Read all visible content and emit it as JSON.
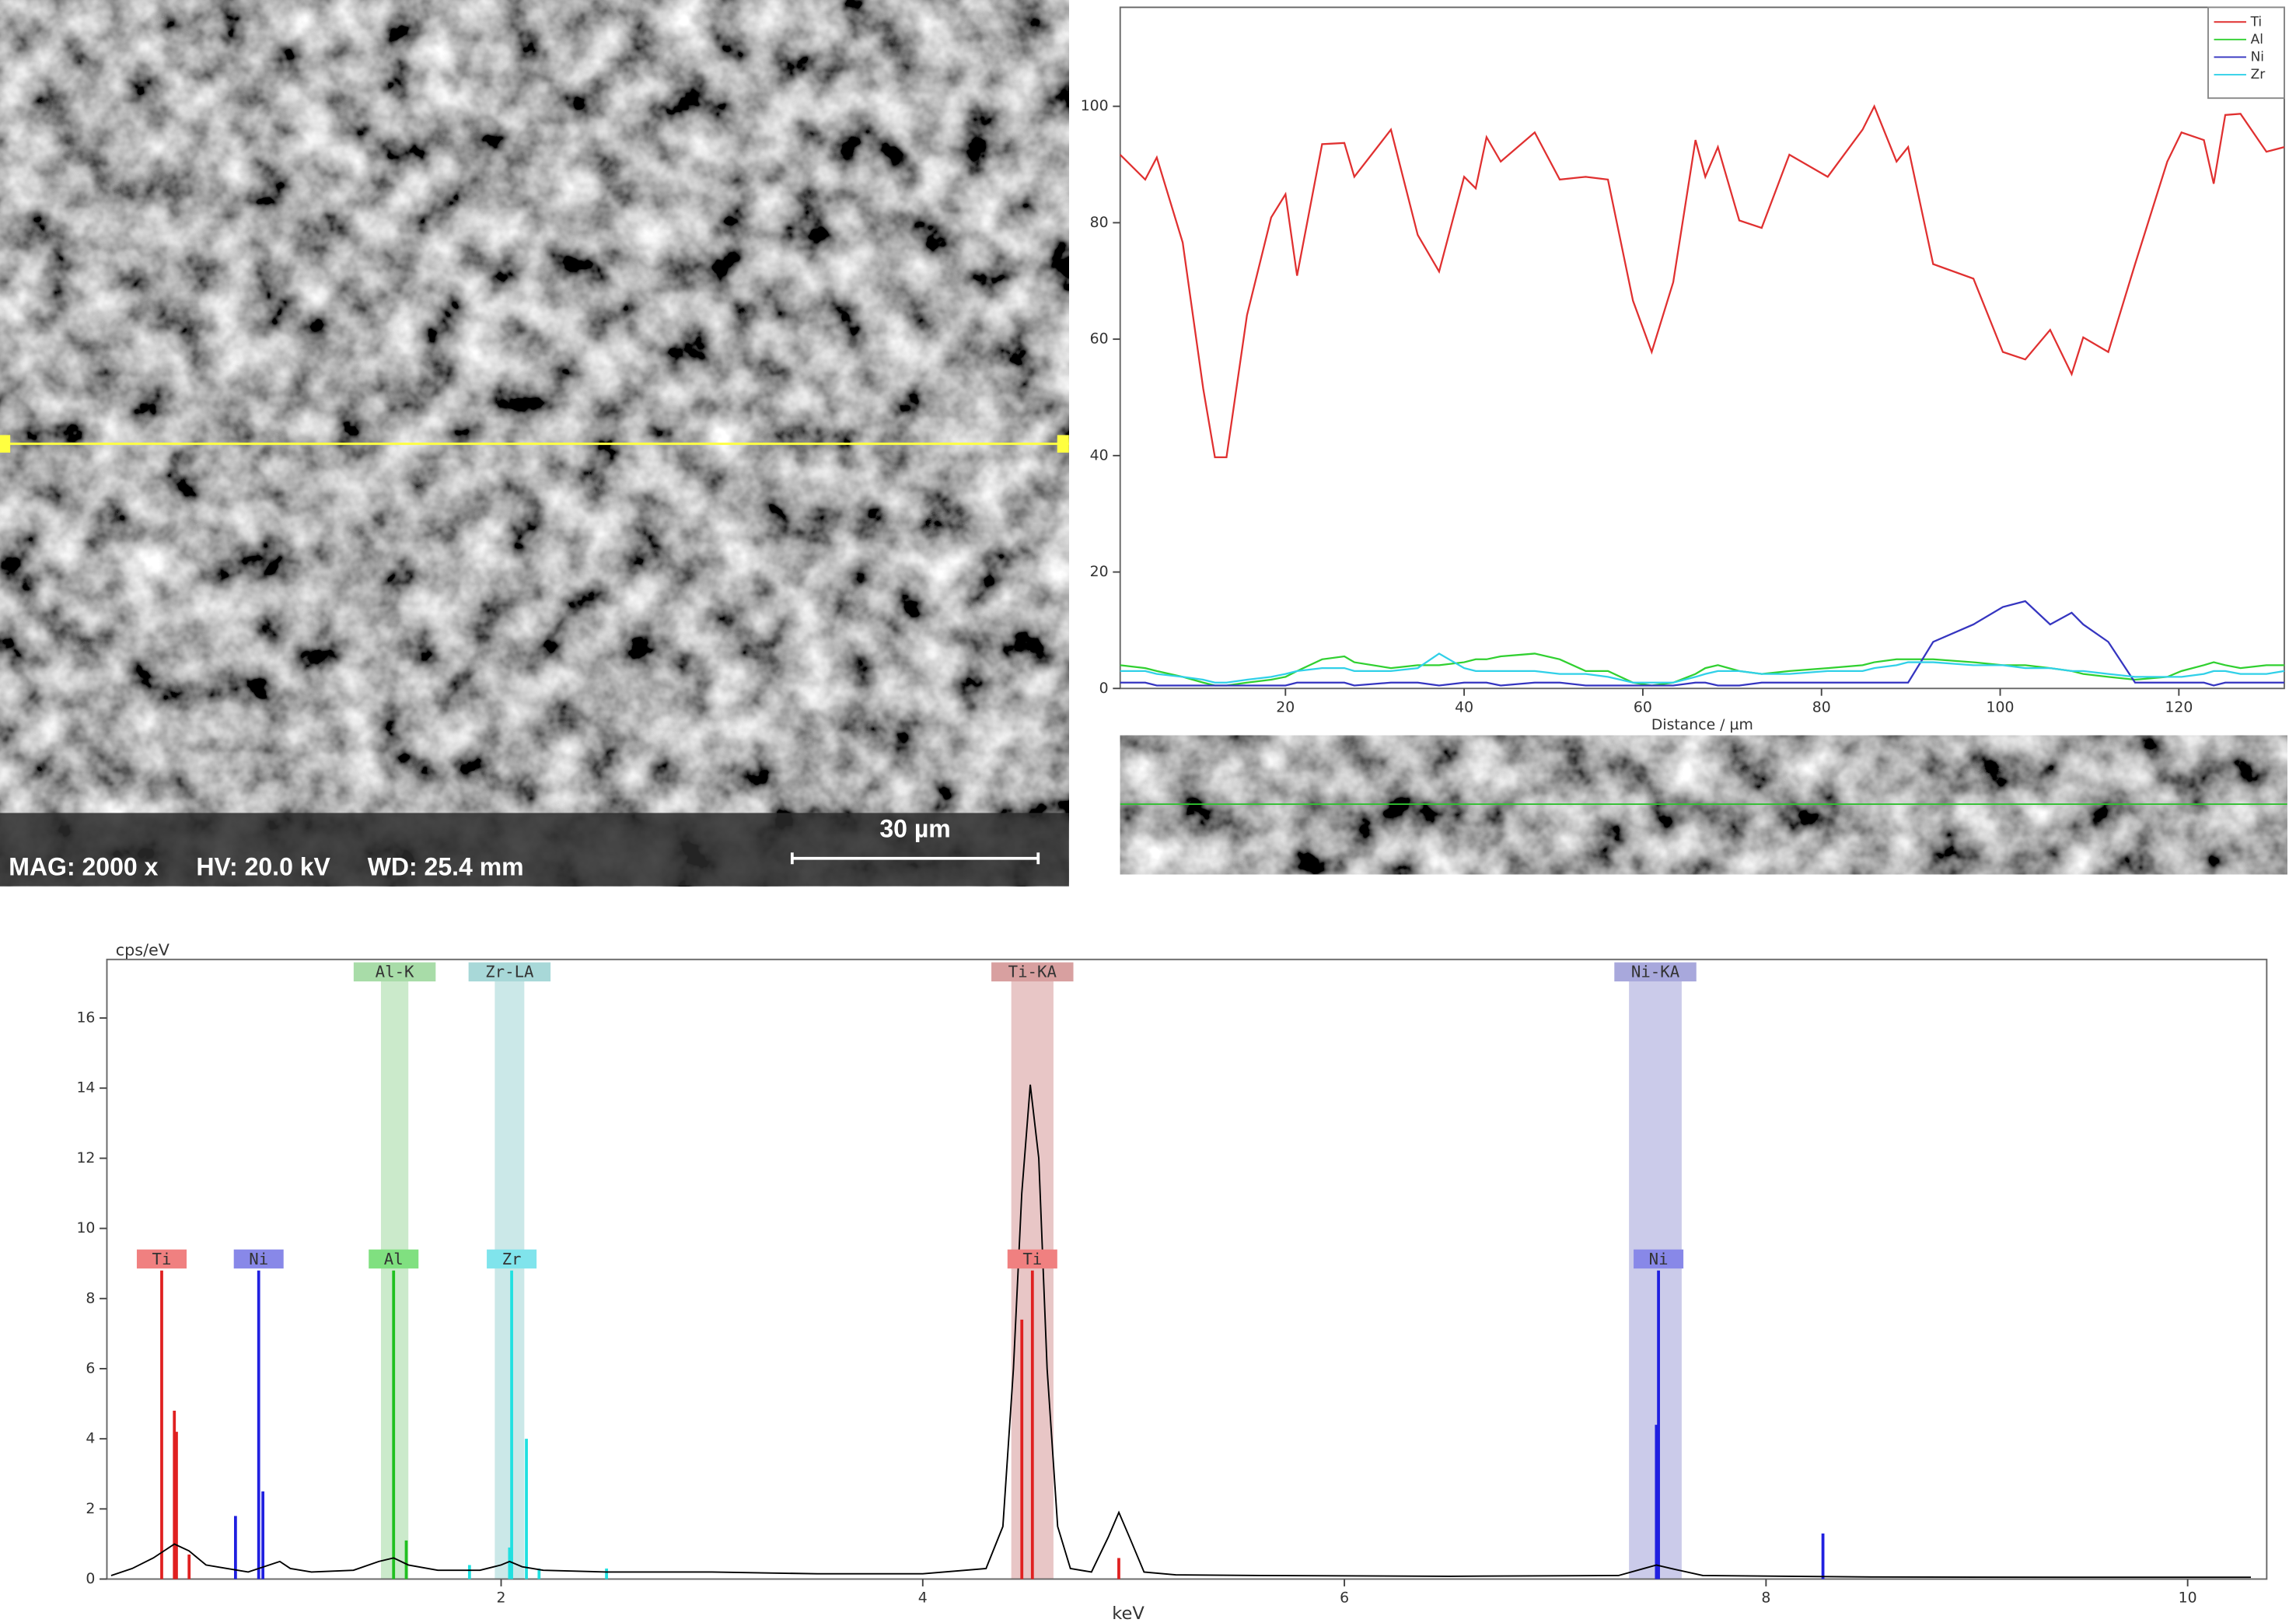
{
  "sem_image": {
    "magnification": "MAG: 2000 x",
    "voltage": "HV: 20.0 kV",
    "working_distance": "WD: 25.4 mm",
    "scale_bar": "30 µm"
  },
  "chart_data": [
    {
      "type": "line",
      "x_label": "Distance / µm",
      "legend": "upper right",
      "x": [
        1.5,
        4.3,
        5.6,
        8.5,
        10.8,
        12.1,
        13.4,
        15.7,
        18.4,
        20.0,
        21.3,
        24.1,
        26.6,
        27.7,
        31.8,
        34.8,
        37.2,
        40.0,
        41.3,
        42.5,
        44.1,
        47.9,
        50.7,
        53.6,
        56.1,
        58.9,
        61.0,
        63.4,
        65.9,
        67.0,
        68.4,
        70.8,
        73.3,
        76.4,
        80.7,
        84.6,
        85.9,
        88.4,
        89.7,
        92.5,
        97.0,
        100.3,
        102.8,
        105.6,
        108.0,
        109.3,
        112.1,
        115.1,
        118.7,
        120.3,
        122.8,
        123.9,
        125.2,
        126.9,
        129.8,
        131.8
      ],
      "series": [
        {
          "name": "Ti",
          "color": "#e03030",
          "values": [
            91.7,
            87.4,
            91.2,
            76.6,
            51.5,
            39.7,
            39.7,
            64.1,
            80.9,
            84.9,
            70.9,
            93.5,
            93.7,
            87.9,
            96.0,
            77.9,
            71.6,
            87.9,
            85.9,
            94.7,
            90.5,
            95.5,
            87.4,
            87.9,
            87.4,
            66.6,
            57.8,
            69.8,
            94.2,
            87.9,
            93.0,
            80.4,
            79.1,
            91.7,
            87.9,
            96.0,
            100,
            90.5,
            93.0,
            72.9,
            70.4,
            57.8,
            56.5,
            61.6,
            54.0,
            60.3,
            57.8,
            72.9,
            90.5,
            95.5,
            94.2,
            86.7,
            98.5,
            98.7,
            92.2,
            93.0
          ]
        },
        {
          "name": "Al",
          "color": "#30d030",
          "values": [
            4,
            3.5,
            3,
            2,
            1,
            0.5,
            0.5,
            1,
            1.5,
            2,
            3,
            5,
            5.5,
            4.5,
            3.5,
            4,
            4,
            4.5,
            5,
            5,
            5.5,
            6,
            5,
            3,
            3,
            1,
            0.5,
            1,
            2.5,
            3.5,
            4,
            3,
            2.5,
            3,
            3.5,
            4,
            4.5,
            5,
            5,
            5,
            4.5,
            4,
            4,
            3.5,
            3,
            2.5,
            2,
            1.5,
            2,
            3,
            4,
            4.5,
            4,
            3.5,
            4,
            4
          ]
        },
        {
          "name": "Ni",
          "color": "#3535c0",
          "values": [
            1,
            1,
            0.5,
            0.5,
            0.5,
            0.5,
            0.5,
            0.5,
            0.5,
            0.5,
            1,
            1,
            1,
            0.5,
            1,
            1,
            0.5,
            1,
            1,
            1,
            0.5,
            1,
            1,
            0.5,
            0.5,
            0.5,
            0.5,
            0.5,
            1,
            1,
            0.5,
            0.5,
            1,
            1,
            1,
            1,
            1,
            1,
            1,
            8,
            11,
            14,
            15,
            11,
            13,
            11,
            8,
            1,
            1,
            1,
            1,
            0.5,
            1,
            1,
            1,
            1
          ]
        },
        {
          "name": "Zr",
          "color": "#30d0e8",
          "values": [
            3,
            3,
            2.5,
            2,
            1.5,
            1,
            1,
            1.5,
            2,
            2.5,
            3,
            3.5,
            3.5,
            3,
            3,
            3.5,
            6,
            3.5,
            3,
            3,
            3,
            3,
            2.5,
            2.5,
            2,
            1,
            1,
            1,
            2,
            2.5,
            3,
            3,
            2.5,
            2.5,
            3,
            3,
            3.5,
            4,
            4.5,
            4.5,
            4,
            4,
            3.5,
            3.5,
            3,
            3,
            2.5,
            2,
            2,
            2,
            2.5,
            3,
            3,
            2.5,
            2.5,
            3
          ]
        }
      ],
      "xlim": [
        1.5,
        131.8
      ],
      "ylim": [
        0,
        117
      ],
      "xticks": [
        20,
        40,
        60,
        80,
        100,
        120
      ],
      "yticks": [
        0,
        20,
        40,
        60,
        80,
        100
      ]
    },
    {
      "type": "spectrum",
      "y_label": "cps/eV",
      "x_label": "keV",
      "color": "#000000",
      "x": [
        0.15,
        0.25,
        0.35,
        0.45,
        0.52,
        0.6,
        0.7,
        0.8,
        0.9,
        0.95,
        1.0,
        1.1,
        1.3,
        1.42,
        1.49,
        1.56,
        1.7,
        1.9,
        2.0,
        2.04,
        2.1,
        2.2,
        2.5,
        3.0,
        3.5,
        4.0,
        4.3,
        4.38,
        4.43,
        4.47,
        4.51,
        4.55,
        4.59,
        4.64,
        4.7,
        4.8,
        4.88,
        4.93,
        4.98,
        5.05,
        5.2,
        5.6,
        6.5,
        7.3,
        7.42,
        7.48,
        7.55,
        7.7,
        8.5,
        9.5,
        10.3
      ],
      "values": [
        0.1,
        0.3,
        0.6,
        1.0,
        0.8,
        0.4,
        0.3,
        0.2,
        0.4,
        0.5,
        0.3,
        0.2,
        0.25,
        0.5,
        0.6,
        0.4,
        0.25,
        0.25,
        0.4,
        0.5,
        0.35,
        0.25,
        0.2,
        0.2,
        0.15,
        0.15,
        0.3,
        1.5,
        6,
        11,
        14.1,
        12,
        6,
        1.5,
        0.3,
        0.2,
        1.2,
        1.9,
        1.2,
        0.2,
        0.12,
        0.1,
        0.08,
        0.1,
        0.3,
        0.4,
        0.3,
        0.1,
        0.06,
        0.05,
        0.05
      ],
      "xlim": [
        0.13,
        10.375
      ],
      "ylim": [
        0,
        17.67
      ],
      "xticks": [
        2,
        4,
        6,
        8,
        10
      ],
      "yticks": [
        0,
        2,
        4,
        6,
        8,
        10,
        12,
        14,
        16
      ],
      "regions": [
        {
          "label": "Al-K",
          "xlim": [
            1.43,
            1.56
          ],
          "color": "#a8dca8"
        },
        {
          "label": "Zr-LA",
          "xlim": [
            1.97,
            2.11
          ],
          "color": "#a8d8d8"
        },
        {
          "label": "Ti-KA",
          "xlim": [
            4.42,
            4.62
          ],
          "color": "#d8a0a0"
        },
        {
          "label": "Ni-KA",
          "xlim": [
            7.35,
            7.6
          ],
          "color": "#a8a8dc"
        }
      ],
      "element_lines": [
        {
          "name": "Ti",
          "color": "#e02020",
          "x": [
            0.39,
            0.45,
            0.46,
            0.52,
            4.47,
            4.52,
            4.93
          ],
          "values": [
            8.8,
            4.8,
            4.2,
            0.7,
            7.4,
            8.8,
            0.6
          ]
        },
        {
          "name": "Ni",
          "color": "#2020e0",
          "x": [
            0.74,
            0.85,
            0.87,
            7.48,
            7.49,
            8.27
          ],
          "values": [
            1.8,
            8.8,
            2.5,
            4.4,
            8.8,
            1.3
          ]
        },
        {
          "name": "Al",
          "color": "#20c020",
          "x": [
            1.49,
            1.55
          ],
          "values": [
            8.8,
            1.1
          ]
        },
        {
          "name": "Zr",
          "color": "#20e0e0",
          "x": [
            1.85,
            2.04,
            2.05,
            2.12,
            2.18,
            2.5
          ],
          "values": [
            0.4,
            0.9,
            8.8,
            4.0,
            0.3,
            0.3
          ]
        }
      ],
      "markers": [
        {
          "label": "Ti",
          "x": 0.39,
          "color": "#f08080"
        },
        {
          "label": "Ni",
          "x": 0.85,
          "color": "#8888e8"
        },
        {
          "label": "Al",
          "x": 1.49,
          "color": "#80e080"
        },
        {
          "label": "Zr",
          "x": 2.05,
          "color": "#80e4ec"
        },
        {
          "label": "Ti",
          "x": 4.52,
          "color": "#f08080"
        },
        {
          "label": "Ni",
          "x": 7.49,
          "color": "#8888e8"
        }
      ]
    }
  ]
}
